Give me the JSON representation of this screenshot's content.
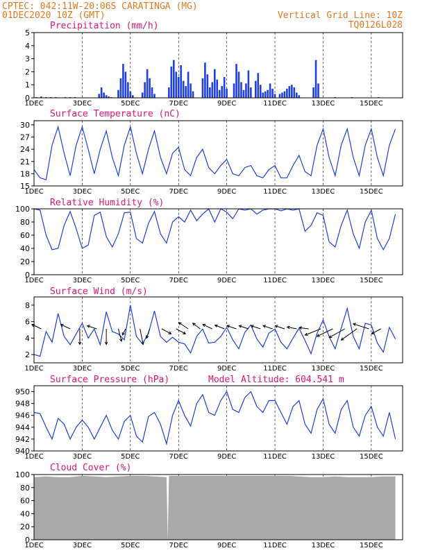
{
  "header": {
    "line1": "CPTEC:  042:11W-20:06S  CARATINGA (MG)",
    "line2": "01DEC2020 10Z (GMT)",
    "grid_note": "Vertical Grid Line: 10Z",
    "code": "TQ0126L028"
  },
  "x_tick_labels": [
    "1DEC",
    "3DEC",
    "5DEC",
    "7DEC",
    "9DEC",
    "11DEC",
    "13DEC",
    "15DEC"
  ],
  "x_tick_days": [
    0,
    2,
    4,
    6,
    8,
    10,
    12,
    14
  ],
  "colors": {
    "header": "#e07a1f",
    "title": "#e0157a",
    "series": "#1f3fe0",
    "cloud": "#a9a9a9"
  },
  "chart_data": [
    {
      "type": "bar",
      "title": "Precipitation (mm/h)",
      "unit": "mm/h",
      "ylim": [
        0,
        5
      ],
      "yticks": [
        0,
        1,
        2,
        3,
        4,
        5
      ],
      "x": [
        0.1,
        0.3,
        0.5,
        0.7,
        0.9,
        1.3,
        1.5,
        1.7,
        2.7,
        2.8,
        2.9,
        3.0,
        3.1,
        3.2,
        3.5,
        3.6,
        3.7,
        3.8,
        3.9,
        4.0,
        4.1,
        4.5,
        4.6,
        4.7,
        4.8,
        4.9,
        5.0,
        5.6,
        5.7,
        5.8,
        5.9,
        6.0,
        6.1,
        6.2,
        6.3,
        6.4,
        6.5,
        6.6,
        7.0,
        7.1,
        7.2,
        7.3,
        7.4,
        7.5,
        7.6,
        7.7,
        7.8,
        7.9,
        8.0,
        8.3,
        8.4,
        8.5,
        8.6,
        8.7,
        8.8,
        8.9,
        9.0,
        9.2,
        9.3,
        9.4,
        9.5,
        9.6,
        9.7,
        9.8,
        9.9,
        10.0,
        10.2,
        10.3,
        10.4,
        10.5,
        10.6,
        10.7,
        10.8,
        10.9,
        11.0,
        11.6,
        11.7,
        11.8,
        12.5,
        13.2,
        14.3
      ],
      "values": [
        0.05,
        0.1,
        0.05,
        0.05,
        0.05,
        0.05,
        0.05,
        0.05,
        0.3,
        0.8,
        0.4,
        0.2,
        0.1,
        0.05,
        0.6,
        1.5,
        2.6,
        2.0,
        1.2,
        0.5,
        0.2,
        0.4,
        1.2,
        2.2,
        1.5,
        0.8,
        0.3,
        0.8,
        2.4,
        2.9,
        2.0,
        1.6,
        2.5,
        1.3,
        0.9,
        2.0,
        1.1,
        0.5,
        1.5,
        2.7,
        1.8,
        0.8,
        1.2,
        2.2,
        1.4,
        0.6,
        0.9,
        1.6,
        0.7,
        1.1,
        2.6,
        2.0,
        1.2,
        0.6,
        1.1,
        2.1,
        0.8,
        1.3,
        1.9,
        1.0,
        0.4,
        0.5,
        0.6,
        1.1,
        0.7,
        0.3,
        0.3,
        0.4,
        0.5,
        0.7,
        0.9,
        1.0,
        0.8,
        0.4,
        0.2,
        0.8,
        2.9,
        1.1,
        0.05,
        0.05,
        0.05
      ]
    },
    {
      "type": "line",
      "title": "Surface Temperature (nC)",
      "unit": "nC",
      "ylim": [
        15,
        31
      ],
      "yticks": [
        15,
        18,
        21,
        24,
        27,
        30
      ],
      "x": [
        0,
        0.25,
        0.5,
        0.75,
        1,
        1.25,
        1.5,
        1.75,
        2,
        2.25,
        2.5,
        2.75,
        3,
        3.25,
        3.5,
        3.75,
        4,
        4.25,
        4.5,
        4.75,
        5,
        5.25,
        5.5,
        5.75,
        6,
        6.25,
        6.5,
        6.75,
        7,
        7.25,
        7.5,
        7.75,
        8,
        8.25,
        8.5,
        8.75,
        9,
        9.25,
        9.5,
        9.75,
        10,
        10.25,
        10.5,
        10.75,
        11,
        11.25,
        11.5,
        11.75,
        12,
        12.25,
        12.5,
        12.75,
        13,
        13.25,
        13.5,
        13.75,
        14,
        14.25,
        14.5,
        14.75,
        15
      ],
      "values": [
        19,
        17,
        16.5,
        25,
        29.5,
        23,
        17.5,
        25,
        29.5,
        24,
        18,
        24,
        28.5,
        22,
        17.5,
        25,
        29.5,
        23,
        18,
        24,
        28.5,
        22,
        18,
        23,
        24.5,
        19,
        17.5,
        22,
        24,
        19.5,
        18,
        20,
        21.5,
        18,
        17.5,
        19.5,
        20,
        17.5,
        17,
        19,
        20,
        17,
        17,
        20,
        22.5,
        18.5,
        17.5,
        25,
        29,
        22,
        17.5,
        25,
        29,
        22,
        17.5,
        25,
        29,
        22,
        17.5,
        25,
        29
      ]
    },
    {
      "type": "line",
      "title": "Relative Humidity (%)",
      "unit": "%",
      "ylim": [
        0,
        100
      ],
      "yticks": [
        0,
        20,
        40,
        60,
        80,
        100
      ],
      "x": [
        0,
        0.25,
        0.5,
        0.75,
        1,
        1.25,
        1.5,
        1.75,
        2,
        2.25,
        2.5,
        2.75,
        3,
        3.25,
        3.5,
        3.75,
        4,
        4.25,
        4.5,
        4.75,
        5,
        5.25,
        5.5,
        5.75,
        6,
        6.25,
        6.5,
        6.75,
        7,
        7.25,
        7.5,
        7.75,
        8,
        8.25,
        8.5,
        8.75,
        9,
        9.25,
        9.5,
        9.75,
        10,
        10.25,
        10.5,
        10.75,
        11,
        11.25,
        11.5,
        11.75,
        12,
        12.25,
        12.5,
        12.75,
        13,
        13.25,
        13.5,
        13.75,
        14,
        14.25,
        14.5,
        14.75,
        15
      ],
      "values": [
        100,
        98,
        60,
        38,
        40,
        75,
        96,
        70,
        40,
        45,
        90,
        95,
        58,
        42,
        62,
        94,
        95,
        55,
        48,
        78,
        96,
        62,
        48,
        80,
        88,
        80,
        98,
        82,
        92,
        100,
        80,
        100,
        95,
        85,
        100,
        98,
        100,
        92,
        98,
        100,
        100,
        97,
        100,
        98,
        100,
        66,
        75,
        94,
        90,
        50,
        42,
        75,
        98,
        62,
        40,
        80,
        98,
        55,
        38,
        55,
        92
      ]
    },
    {
      "type": "line",
      "title": "Surface Wind (m/s)",
      "unit": "m/s",
      "ylim": [
        1,
        9
      ],
      "yticks": [
        2,
        4,
        6,
        8
      ],
      "x": [
        0,
        0.25,
        0.5,
        0.75,
        1,
        1.25,
        1.5,
        1.75,
        2,
        2.25,
        2.5,
        2.75,
        3,
        3.25,
        3.5,
        3.75,
        4,
        4.25,
        4.5,
        4.75,
        5,
        5.25,
        5.5,
        5.75,
        6,
        6.25,
        6.5,
        6.75,
        7,
        7.25,
        7.5,
        7.75,
        8,
        8.25,
        8.5,
        8.75,
        9,
        9.25,
        9.5,
        9.75,
        10,
        10.25,
        10.5,
        10.75,
        11,
        11.25,
        11.5,
        11.75,
        12,
        12.25,
        12.5,
        12.75,
        13,
        13.25,
        13.5,
        13.75,
        14,
        14.25,
        14.5,
        14.75,
        15
      ],
      "values": [
        2,
        1.8,
        4.8,
        3.5,
        7,
        4.2,
        3.2,
        4.5,
        5.8,
        4,
        5.1,
        3.2,
        7.2,
        4.8,
        4.5,
        3.8,
        8,
        4.2,
        3.3,
        4.6,
        7.3,
        4.2,
        3.5,
        4.1,
        3.5,
        3.3,
        2.2,
        4.2,
        5.1,
        3.4,
        3.5,
        4.2,
        5.3,
        3.8,
        2.7,
        4.7,
        5.6,
        3.9,
        2.9,
        4.6,
        5.1,
        3.5,
        2.7,
        4,
        5.2,
        3.7,
        2.1,
        4.6,
        6.2,
        4.2,
        2.7,
        5.2,
        7.6,
        4.2,
        2.7,
        5.8,
        5.6,
        3.4,
        2.3,
        5.3,
        3.9
      ],
      "arrows": {
        "x": [
          0.3,
          1.5,
          1.9,
          2.6,
          3.0,
          3.5,
          3.8,
          4.4,
          4.8,
          5.3,
          5.9,
          6.4,
          6.9,
          7.4,
          7.9,
          8.4,
          8.9,
          9.4,
          9.9,
          10.4,
          10.9,
          11.4,
          11.9,
          12.4,
          12.9,
          13.4,
          13.9,
          14.4
        ],
        "u": [
          -1.5,
          -1.5,
          0,
          -1.5,
          0,
          0.5,
          -0.5,
          0.5,
          -0.5,
          1.5,
          1.5,
          -1.5,
          -1.2,
          -1.5,
          -1.5,
          -1.5,
          -1.5,
          -1.5,
          -1.5,
          -1.5,
          -1.5,
          -1.5,
          -2.5,
          -2.5,
          -2.5,
          -2.5,
          -2.5,
          -1.5
        ],
        "v": [
          0.7,
          0.7,
          -2.5,
          0.5,
          -2.5,
          -2,
          -1,
          -2.5,
          -1.5,
          -0.8,
          -0.8,
          1,
          0.9,
          0.7,
          0.6,
          0.5,
          0.5,
          0.5,
          0.5,
          0.5,
          0.3,
          0.2,
          -1,
          -1.2,
          -1.4,
          -1.8,
          0.8,
          -0.8
        ]
      }
    },
    {
      "type": "line",
      "title": "Surface Pressure (hPa)",
      "unit": "hPa",
      "annotation": "Model Altitude: 604.541  m",
      "ylim": [
        940,
        951
      ],
      "yticks": [
        940,
        942,
        944,
        946,
        948,
        950
      ],
      "x": [
        0,
        0.25,
        0.5,
        0.75,
        1,
        1.25,
        1.5,
        1.75,
        2,
        2.25,
        2.5,
        2.75,
        3,
        3.25,
        3.5,
        3.75,
        4,
        4.25,
        4.5,
        4.75,
        5,
        5.25,
        5.5,
        5.75,
        6,
        6.25,
        6.5,
        6.75,
        7,
        7.25,
        7.5,
        7.75,
        8,
        8.25,
        8.5,
        8.75,
        9,
        9.25,
        9.5,
        9.75,
        10,
        10.25,
        10.5,
        10.75,
        11,
        11.25,
        11.5,
        11.75,
        12,
        12.25,
        12.5,
        12.75,
        13,
        13.25,
        13.5,
        13.75,
        14,
        14.25,
        14.5,
        14.75,
        15
      ],
      "values": [
        946.5,
        946.3,
        944,
        942,
        945.5,
        944.5,
        942,
        944,
        945.2,
        944,
        942,
        944,
        946,
        943.5,
        942,
        945,
        946,
        942.5,
        941.5,
        945.8,
        946.5,
        944.5,
        941.2,
        946,
        948.5,
        946,
        944.2,
        948,
        949.5,
        946.5,
        946,
        948.5,
        950,
        947,
        946.5,
        949,
        950,
        947.5,
        946.5,
        948.5,
        948.5,
        946.5,
        944.5,
        947.5,
        948.5,
        944.5,
        943,
        947,
        948.8,
        944.5,
        943,
        947,
        948.5,
        944,
        942.5,
        946,
        947.5,
        944,
        942.5,
        946.5,
        942
      ]
    },
    {
      "type": "area",
      "title": "Cloud Cover (%)",
      "unit": "%",
      "ylim": [
        0,
        100
      ],
      "yticks": [
        0,
        20,
        40,
        60,
        80,
        100
      ],
      "x": [
        0,
        0.5,
        1,
        1.5,
        2,
        2.5,
        3,
        3.5,
        4,
        4.5,
        5,
        5.5,
        5.55,
        5.6,
        6,
        6.5,
        7,
        7.5,
        8,
        8.5,
        9,
        9.5,
        10,
        10.5,
        11,
        11.5,
        12,
        12.5,
        13,
        13.5,
        14,
        14.5,
        15
      ],
      "values": [
        96,
        97,
        96,
        96,
        98,
        97,
        96,
        97,
        98,
        98,
        97,
        96,
        0,
        98,
        98,
        98,
        98,
        98,
        98,
        98,
        98,
        98,
        98,
        98,
        97,
        96,
        96,
        97,
        96,
        96,
        96,
        97,
        97
      ]
    }
  ]
}
